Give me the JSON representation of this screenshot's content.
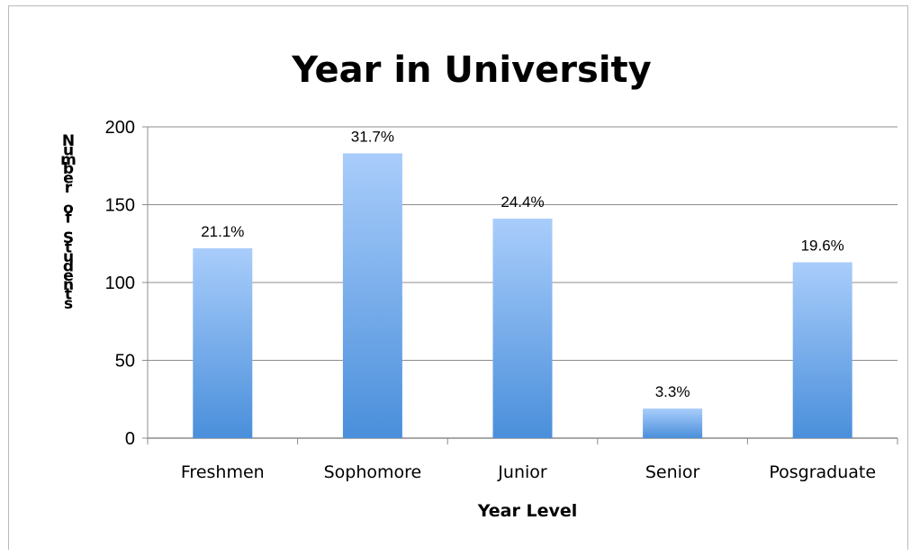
{
  "chart_data": {
    "type": "bar",
    "title": "Year in University",
    "xlabel": "Year Level",
    "ylabel": "Number of Students",
    "categories": [
      "Freshmen",
      "Sophomore",
      "Junior",
      "Senior",
      "Posgraduate"
    ],
    "values": [
      122,
      183,
      141,
      19,
      113
    ],
    "data_labels": [
      "21.1%",
      "31.7%",
      "24.4%",
      "3.3%",
      "19.6%"
    ],
    "ylim": [
      0,
      200
    ],
    "yticks": [
      0,
      50,
      100,
      150,
      200
    ],
    "grid": true,
    "legend": "none",
    "colors": {
      "bar_top": "#a9cdfb",
      "bar_bottom": "#4a8fdb",
      "grid": "#8c8c8c"
    }
  }
}
